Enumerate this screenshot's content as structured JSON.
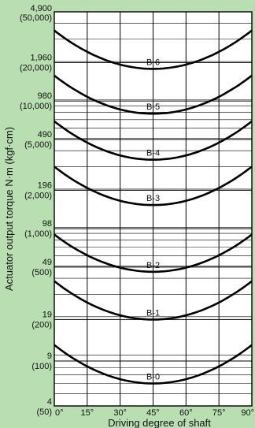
{
  "chart_data": {
    "type": "line",
    "xlabel": "Driving degree of shaft",
    "ylabel": "Actuator output torque N·m (kgf·cm)",
    "xlim": [
      0,
      90
    ],
    "x_ticks": [
      "0°",
      "15°",
      "30°",
      "45°",
      "60°",
      "75°",
      "90°"
    ],
    "y_scale": "log",
    "ylim": [
      4,
      4900
    ],
    "y_ticks": [
      {
        "value": 4,
        "label": "4",
        "sub": "(50)"
      },
      {
        "value": 9,
        "label": "9",
        "sub": "(100)"
      },
      {
        "value": 19,
        "label": "19",
        "sub": "(200)"
      },
      {
        "value": 49,
        "label": "49",
        "sub": "(500)"
      },
      {
        "value": 98,
        "label": "98",
        "sub": "(1,000)"
      },
      {
        "value": 196,
        "label": "196",
        "sub": "(2,000)"
      },
      {
        "value": 490,
        "label": "490",
        "sub": "(5,000)"
      },
      {
        "value": 980,
        "label": "980",
        "sub": "(10,000)"
      },
      {
        "value": 1960,
        "label": "1,960",
        "sub": "(20,000)"
      },
      {
        "value": 4900,
        "label": "4,900",
        "sub": "(50,000)"
      }
    ],
    "grid": true,
    "series": [
      {
        "name": "B-6",
        "x": [
          0,
          45,
          90
        ],
        "y": [
          3500,
          1750,
          3500
        ]
      },
      {
        "name": "B-5",
        "x": [
          0,
          45,
          90
        ],
        "y": [
          1550,
          780,
          1550
        ]
      },
      {
        "name": "B-4",
        "x": [
          0,
          45,
          90
        ],
        "y": [
          680,
          340,
          680
        ]
      },
      {
        "name": "B-3",
        "x": [
          0,
          45,
          90
        ],
        "y": [
          300,
          150,
          300
        ]
      },
      {
        "name": "B-2",
        "x": [
          0,
          45,
          90
        ],
        "y": [
          88,
          45,
          88
        ]
      },
      {
        "name": "B-1",
        "x": [
          0,
          45,
          90
        ],
        "y": [
          38,
          19,
          38
        ]
      },
      {
        "name": "B-0",
        "x": [
          0,
          45,
          90
        ],
        "y": [
          12,
          6,
          12
        ]
      }
    ]
  },
  "colors": {
    "background": "#b9deb2",
    "plot_bg": "#ffffff",
    "line": "#000000"
  }
}
